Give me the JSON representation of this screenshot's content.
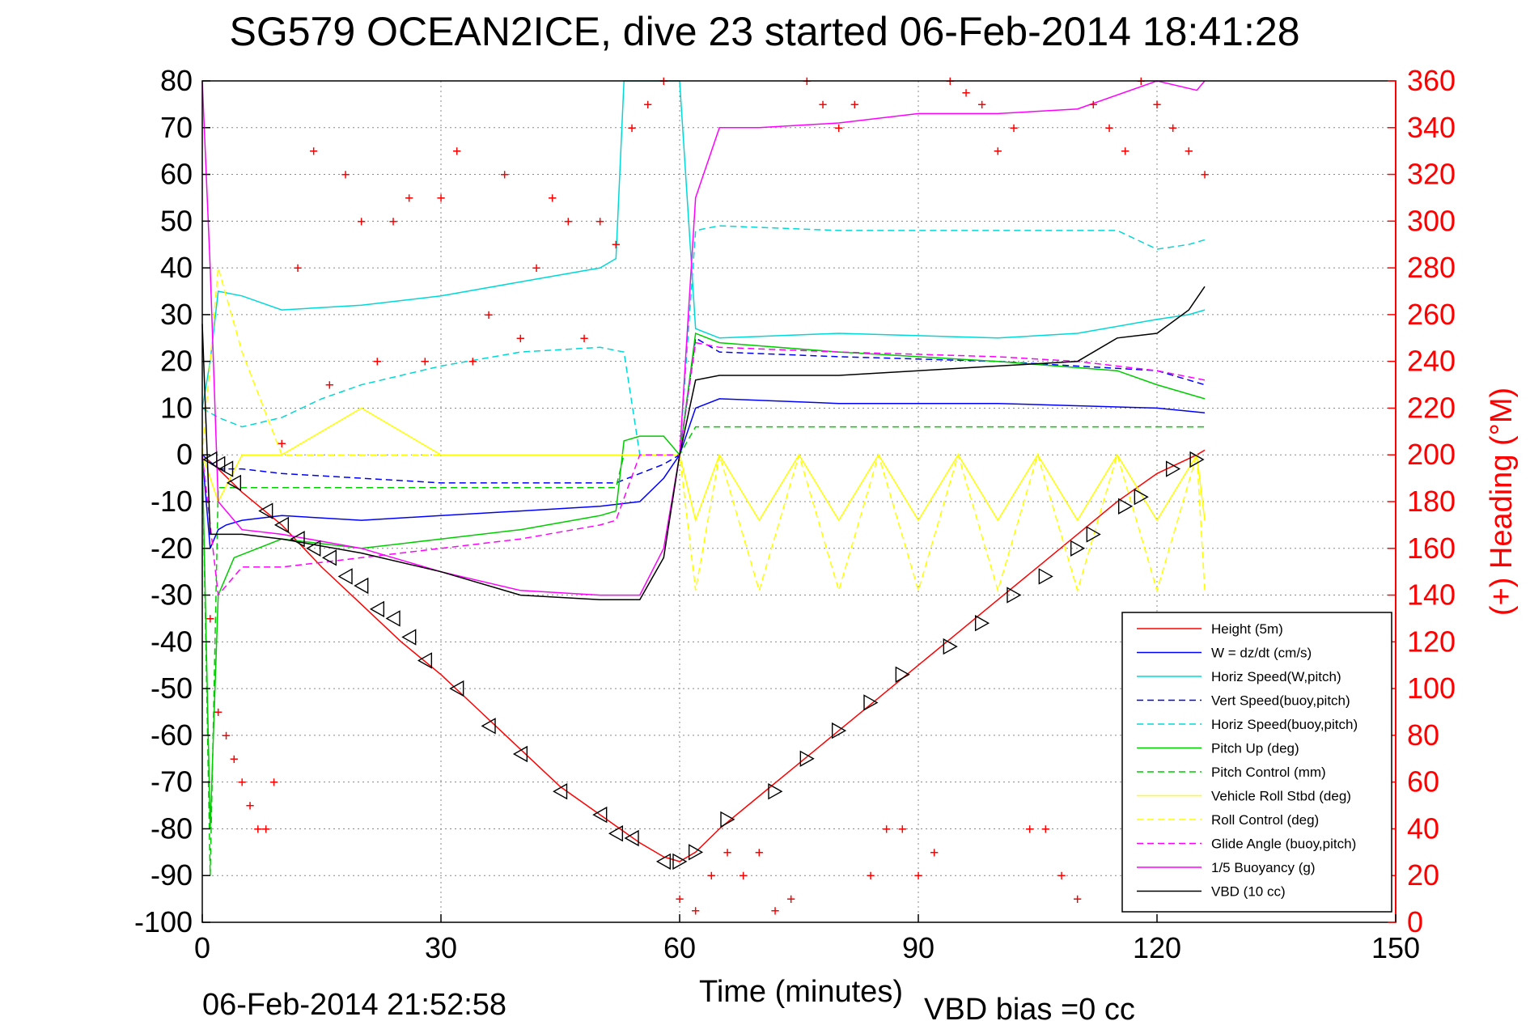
{
  "chart_data": {
    "type": "line",
    "title": "SG579 OCEAN2ICE, dive 23 started 06-Feb-2014 18:41:28",
    "xlabel": "Time (minutes)",
    "ylabel_right": "(+) Heading (°M)",
    "footer_left": "06-Feb-2014 21:52:58",
    "footer_right": "VBD bias =0 cc",
    "xlim": [
      0,
      150
    ],
    "ylim": [
      -100,
      80
    ],
    "ylim_right": [
      0,
      360
    ],
    "x_ticks": [
      0,
      30,
      60,
      90,
      120,
      150
    ],
    "y_ticks": [
      80,
      70,
      60,
      50,
      40,
      30,
      20,
      10,
      0,
      -10,
      -20,
      -30,
      -40,
      -50,
      -60,
      -70,
      -80,
      -90,
      -100
    ],
    "y_ticks_right": [
      360,
      340,
      320,
      300,
      280,
      260,
      240,
      220,
      200,
      180,
      160,
      140,
      120,
      100,
      80,
      60,
      40,
      20,
      0
    ],
    "grid": true,
    "legend_position": "bottom-right",
    "series": [
      {
        "name": "Height (5m)",
        "color": "#ff0000",
        "style": "solid",
        "x": [
          0,
          2,
          5,
          10,
          15,
          20,
          25,
          30,
          35,
          40,
          45,
          50,
          55,
          58,
          60,
          62,
          65,
          70,
          75,
          80,
          85,
          90,
          95,
          100,
          105,
          110,
          115,
          120,
          125,
          126
        ],
        "y": [
          0,
          -3,
          -8,
          -15,
          -24,
          -32,
          -40,
          -47,
          -55,
          -63,
          -71,
          -77,
          -83,
          -86,
          -87,
          -85,
          -80,
          -73,
          -66,
          -59,
          -52,
          -45,
          -38,
          -31,
          -24,
          -17,
          -10,
          -4,
          0,
          1
        ]
      },
      {
        "name": "W = dz/dt (cm/s)",
        "color": "#0000ff",
        "style": "solid",
        "x": [
          0,
          1,
          2,
          3,
          5,
          10,
          20,
          30,
          40,
          50,
          55,
          58,
          60,
          62,
          65,
          80,
          100,
          120,
          126
        ],
        "y": [
          0,
          -20,
          -16,
          -15,
          -14,
          -13,
          -14,
          -13,
          -12,
          -11,
          -10,
          -5,
          0,
          10,
          12,
          11,
          11,
          10,
          9
        ]
      },
      {
        "name": "Horiz Speed(W,pitch)",
        "color": "#00d8d8",
        "style": "solid",
        "x": [
          0,
          1,
          2,
          5,
          10,
          20,
          30,
          40,
          50,
          52,
          53,
          55,
          58,
          60,
          62,
          65,
          80,
          100,
          110,
          120,
          124,
          126
        ],
        "y": [
          10,
          20,
          35,
          34,
          31,
          32,
          34,
          37,
          40,
          42,
          80,
          80,
          80,
          80,
          27,
          25,
          26,
          25,
          26,
          29,
          30,
          31
        ]
      },
      {
        "name": "Vert Speed(buoy,pitch)",
        "color": "#0000ff",
        "style": "dashed",
        "x": [
          0,
          2,
          5,
          10,
          20,
          30,
          40,
          50,
          52,
          55,
          58,
          60,
          62,
          65,
          80,
          100,
          120,
          126
        ],
        "y": [
          0,
          -3,
          -3,
          -4,
          -5,
          -6,
          -6,
          -6,
          -6,
          -4,
          -2,
          0,
          25,
          22,
          21,
          20,
          18,
          15
        ]
      },
      {
        "name": "Horiz Speed(buoy,pitch)",
        "color": "#00d8d8",
        "style": "dashed",
        "x": [
          0,
          2,
          5,
          10,
          15,
          20,
          30,
          40,
          50,
          53,
          55,
          58,
          60,
          62,
          65,
          80,
          100,
          115,
          120,
          124,
          126
        ],
        "y": [
          10,
          8,
          6,
          8,
          12,
          15,
          19,
          22,
          23,
          22,
          0,
          0,
          0,
          48,
          49,
          48,
          48,
          48,
          44,
          45,
          46
        ]
      },
      {
        "name": "Pitch Up (deg)",
        "color": "#00cc00",
        "style": "solid",
        "x": [
          0,
          1,
          2,
          4,
          10,
          20,
          30,
          40,
          50,
          52,
          53,
          55,
          58,
          60,
          62,
          65,
          80,
          100,
          115,
          120,
          126
        ],
        "y": [
          0,
          -80,
          -30,
          -22,
          -18,
          -20,
          -18,
          -16,
          -13,
          -12,
          3,
          4,
          4,
          0,
          26,
          24,
          22,
          20,
          18,
          15,
          12
        ]
      },
      {
        "name": "Pitch Control (mm)",
        "color": "#00cc00",
        "style": "dashed",
        "x": [
          0,
          1,
          2,
          4,
          10,
          20,
          30,
          40,
          50,
          52,
          53,
          60,
          62,
          80,
          100,
          120,
          126
        ],
        "y": [
          0,
          -90,
          -7,
          -7,
          -7,
          -7,
          -7,
          -7,
          -7,
          -7,
          0,
          0,
          6,
          6,
          6,
          6,
          6
        ]
      },
      {
        "name": "Vehicle Roll Stbd (deg)",
        "color": "#ffff00",
        "style": "solid",
        "x": [
          0,
          2,
          5,
          10,
          20,
          30,
          40,
          50,
          60,
          62,
          65,
          70,
          75,
          80,
          85,
          90,
          95,
          100,
          105,
          110,
          115,
          120,
          125,
          126
        ],
        "y": [
          0,
          -10,
          0,
          0,
          10,
          0,
          0,
          0,
          0,
          -14,
          0,
          -14,
          0,
          -14,
          0,
          -14,
          0,
          -14,
          0,
          -14,
          0,
          -14,
          0,
          -14
        ]
      },
      {
        "name": "Roll Control (deg)",
        "color": "#ffff00",
        "style": "dashed",
        "x": [
          0,
          2,
          5,
          10,
          15,
          20,
          30,
          40,
          50,
          60,
          62,
          65,
          70,
          75,
          80,
          85,
          90,
          95,
          100,
          105,
          110,
          115,
          120,
          125,
          126
        ],
        "y": [
          0,
          40,
          22,
          0,
          0,
          0,
          0,
          0,
          0,
          0,
          -29,
          0,
          -29,
          0,
          -29,
          0,
          -29,
          0,
          -29,
          0,
          -29,
          0,
          -29,
          0,
          -29
        ]
      },
      {
        "name": "Glide Angle (buoy,pitch)",
        "color": "#ff00ff",
        "style": "dashed",
        "x": [
          0,
          2,
          5,
          10,
          20,
          30,
          40,
          50,
          52,
          55,
          58,
          60,
          62,
          65,
          80,
          100,
          110,
          120,
          126
        ],
        "y": [
          0,
          -30,
          -24,
          -24,
          -22,
          -20,
          -18,
          -15,
          -14,
          0,
          0,
          0,
          24,
          23,
          22,
          21,
          20,
          18,
          16
        ]
      },
      {
        "name": "1/5 Buoyancy (g)",
        "color": "#ff00ff",
        "style": "solid",
        "x": [
          0,
          1,
          2,
          5,
          10,
          20,
          30,
          40,
          50,
          55,
          58,
          60,
          62,
          65,
          70,
          80,
          90,
          100,
          110,
          120,
          125,
          126
        ],
        "y": [
          80,
          40,
          -10,
          -16,
          -17,
          -20,
          -25,
          -29,
          -30,
          -30,
          -20,
          0,
          55,
          70,
          70,
          71,
          73,
          73,
          74,
          80,
          78,
          80
        ]
      },
      {
        "name": "VBD (10 cc)",
        "color": "#000000",
        "style": "solid",
        "x": [
          0,
          1,
          5,
          10,
          20,
          30,
          40,
          50,
          55,
          58,
          60,
          62,
          65,
          70,
          80,
          90,
          100,
          110,
          115,
          120,
          124,
          126
        ],
        "y": [
          28,
          -17,
          -17,
          -18,
          -21,
          -25,
          -30,
          -31,
          -31,
          -22,
          0,
          16,
          17,
          17,
          17,
          18,
          19,
          20,
          25,
          26,
          31,
          36
        ]
      }
    ],
    "heading_scatter": {
      "color": "#ff0000",
      "marker": "+",
      "axis": "right",
      "x": [
        1,
        2,
        3,
        4,
        5,
        6,
        7,
        8,
        9,
        10,
        12,
        14,
        16,
        18,
        20,
        22,
        24,
        26,
        28,
        30,
        32,
        34,
        36,
        38,
        40,
        42,
        44,
        46,
        48,
        50,
        52,
        54,
        56,
        58,
        60,
        62,
        64,
        66,
        68,
        70,
        72,
        74,
        76,
        78,
        80,
        82,
        84,
        86,
        88,
        90,
        92,
        94,
        96,
        98,
        100,
        102,
        104,
        106,
        108,
        110,
        112,
        114,
        116,
        118,
        120,
        122,
        124,
        126
      ],
      "y": [
        130,
        90,
        80,
        70,
        60,
        50,
        40,
        40,
        60,
        205,
        280,
        330,
        230,
        320,
        300,
        240,
        300,
        310,
        240,
        310,
        330,
        240,
        260,
        320,
        250,
        280,
        310,
        300,
        250,
        300,
        290,
        340,
        350,
        360,
        10,
        5,
        20,
        30,
        20,
        30,
        5,
        10,
        360,
        350,
        340,
        350,
        20,
        40,
        40,
        20,
        30,
        360,
        355,
        350,
        330,
        340,
        40,
        40,
        20,
        10,
        350,
        340,
        330,
        360,
        350,
        340,
        330,
        320
      ]
    },
    "pitch_markers": {
      "color": "#000000",
      "marker": "triangle",
      "x": [
        1,
        2,
        3,
        4,
        8,
        10,
        12,
        14,
        16,
        18,
        20,
        22,
        24,
        26,
        28,
        32,
        36,
        40,
        45,
        50,
        52,
        54,
        58,
        60,
        62,
        66,
        72,
        76,
        80,
        84,
        88,
        94,
        98,
        102,
        106,
        110,
        112,
        116,
        118,
        122,
        125
      ],
      "y": [
        -1,
        -2,
        -3,
        -6,
        -12,
        -15,
        -18,
        -20,
        -22,
        -26,
        -28,
        -33,
        -35,
        -39,
        -44,
        -50,
        -58,
        -64,
        -72,
        -77,
        -81,
        -82,
        -87,
        -87,
        -85,
        -78,
        -72,
        -65,
        -59,
        -53,
        -47,
        -41,
        -36,
        -30,
        -26,
        -20,
        -17,
        -11,
        -9,
        -3,
        -1
      ]
    }
  }
}
